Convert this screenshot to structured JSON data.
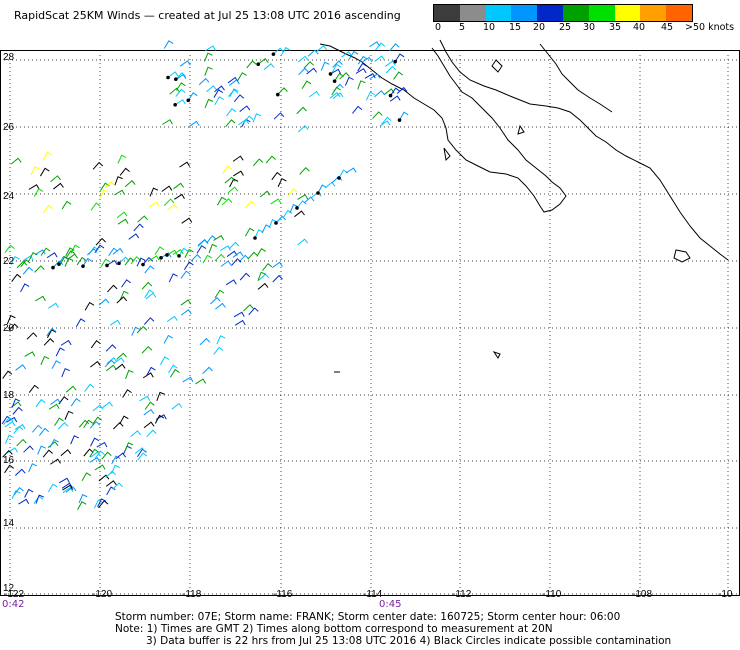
{
  "title": "RapidScat 25KM Winds — created at Jul 25 13:08 UTC 2016 ascending",
  "legend": {
    "colors": [
      "#3c3c3c",
      "#8c8c8c",
      "#00c8ff",
      "#0096ff",
      "#0028c8",
      "#00a000",
      "#00e000",
      "#ffff00",
      "#ffa000",
      "#ff6400",
      "#ff0000",
      "#c80000",
      "#6e3c14",
      "#a05a28",
      "#ff00ff",
      "#b400b4",
      "#6400c8",
      "#3c0096",
      "#1e0064"
    ],
    "labels": [
      "0",
      "5",
      "10",
      "15",
      "20",
      "25",
      "30",
      "35",
      "40",
      "45",
      ">50 knots"
    ]
  },
  "axes": {
    "lon_labels": [
      "-122",
      "-120",
      "-118",
      "-116",
      "-114",
      "-112",
      "-110",
      "-108",
      "-10"
    ],
    "lat_labels": [
      "28",
      "26",
      "24",
      "22",
      "20",
      "18",
      "16",
      "14",
      "12"
    ]
  },
  "time_labels": [
    "0:42",
    "0:45"
  ],
  "footer": {
    "line1": "Storm number: 07E;  Storm name: FRANK;  Storm center date: 160725;  Storm center hour: 06:00",
    "line2": "Note: 1) Times are GMT  2) Times along bottom correspond to measurement at 20N",
    "line3": "3) Data buffer is 22 hrs from Jul 25 13:08 UTC 2016   4) Black Circles indicate possible contamination"
  }
}
